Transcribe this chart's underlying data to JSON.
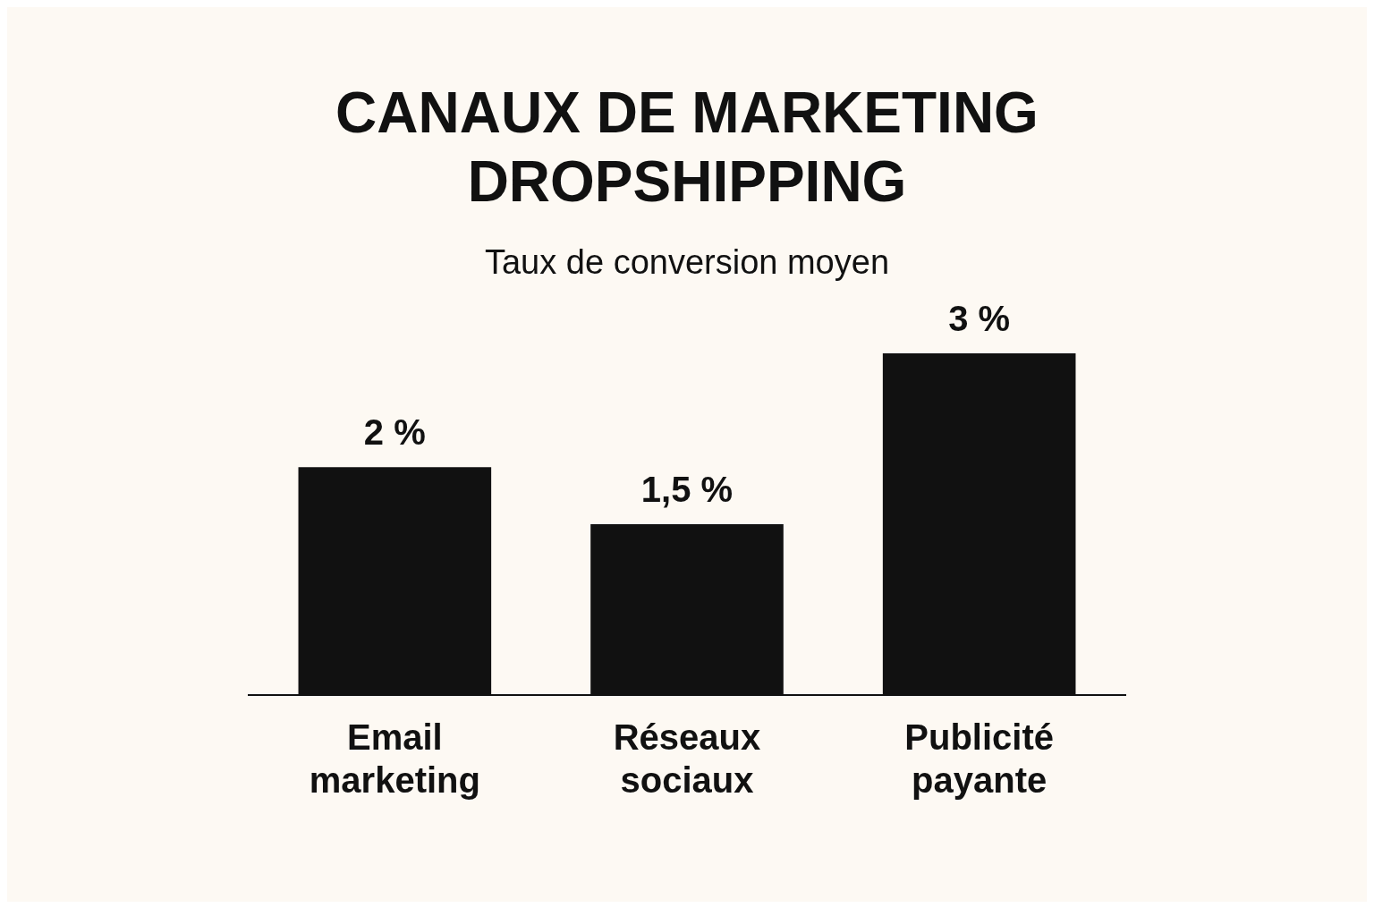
{
  "chart_data": {
    "type": "bar",
    "title": "CANAUX DE MARKETING DROPSHIPPING",
    "subtitle": "Taux de conversion moyen",
    "categories": [
      "Email marketing",
      "Réseaux sociaux",
      "Publicité payante"
    ],
    "values": [
      2,
      1.5,
      3
    ],
    "color": "#111111",
    "value_labels": [
      "2 %",
      "1,5 %",
      "3 %"
    ],
    "grid": false,
    "legend": false,
    "tick_labels": "x"
  }
}
